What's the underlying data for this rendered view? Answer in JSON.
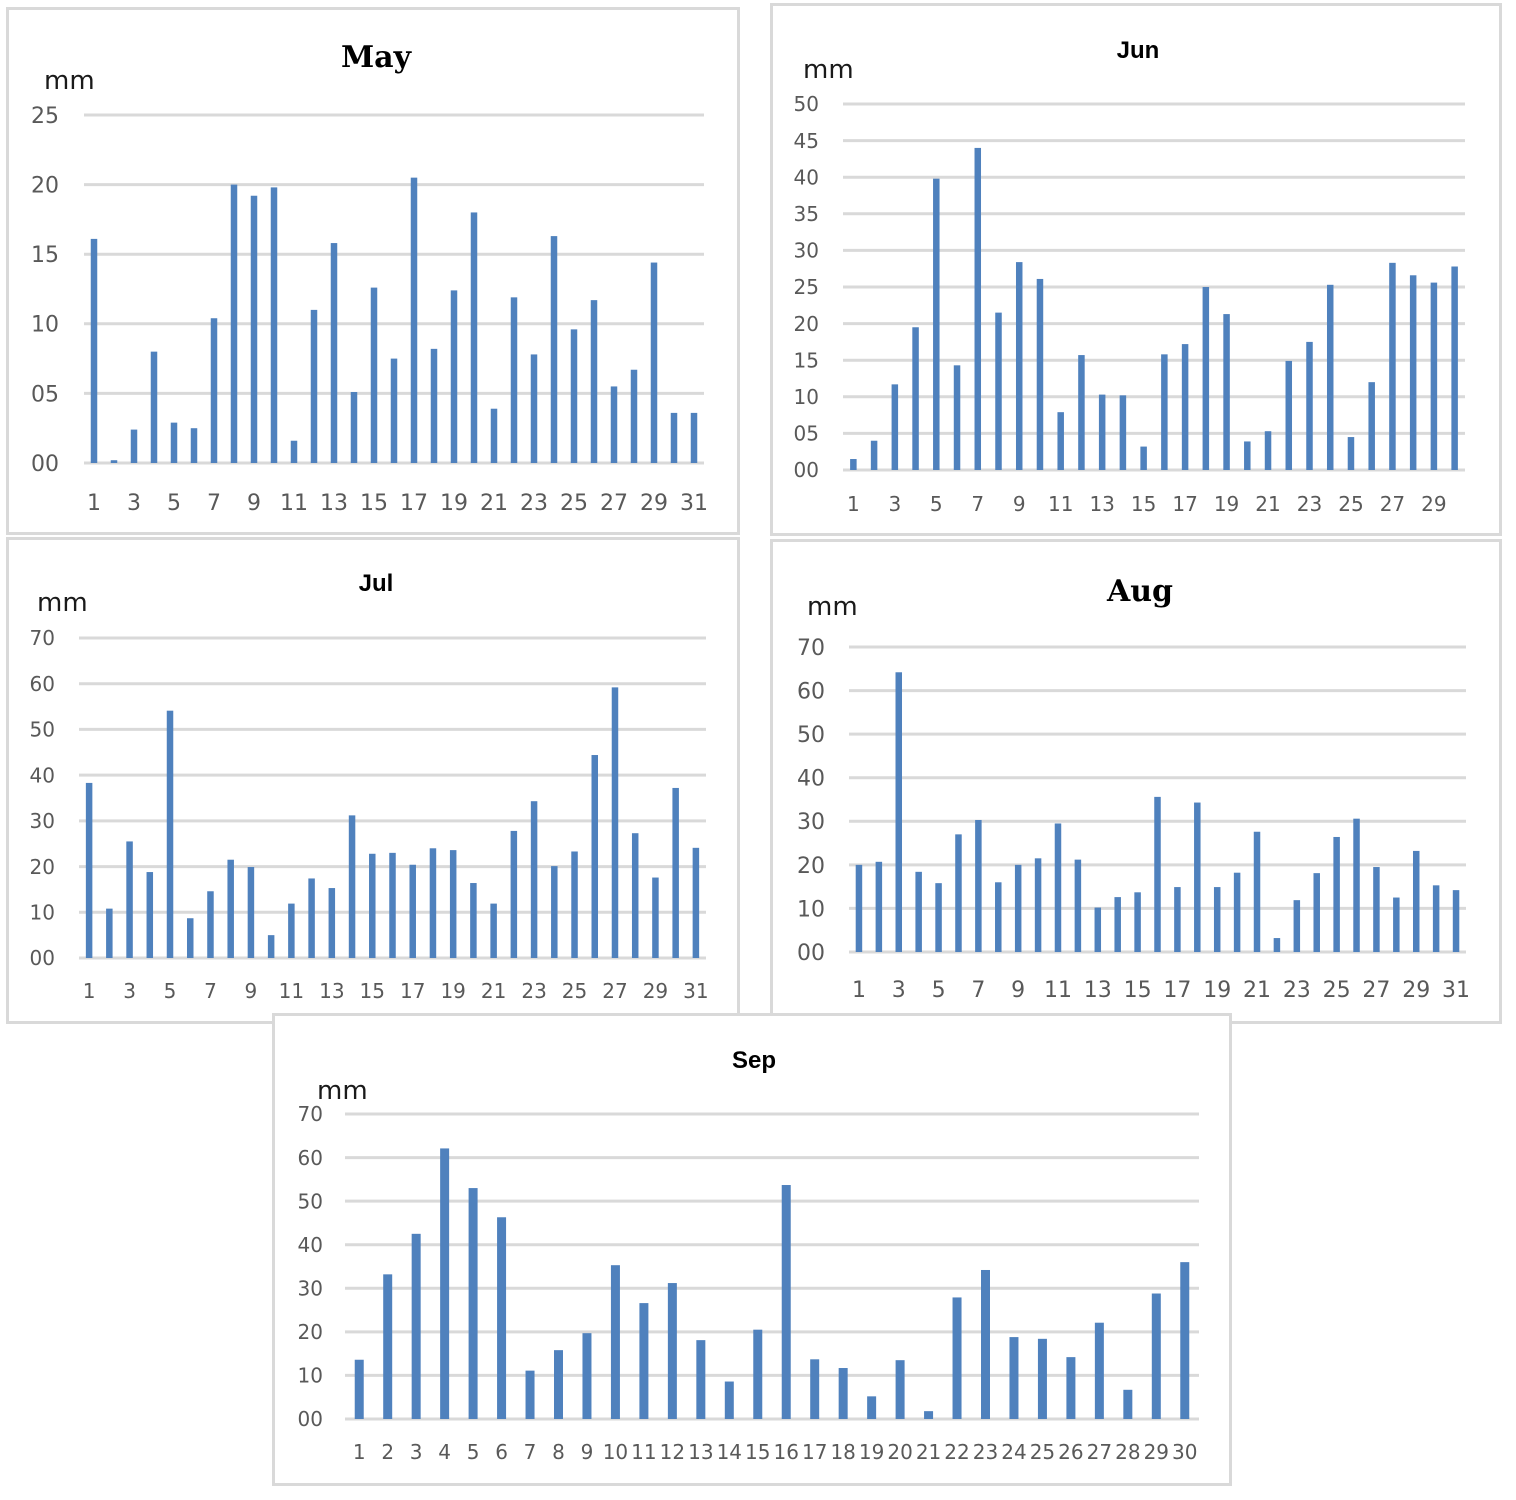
{
  "chart_data": [
    {
      "type": "bar",
      "title": "May",
      "ylabel": "mm",
      "ylim": [
        0,
        25
      ],
      "y_ticks": [
        "00",
        "05",
        "10",
        "15",
        "20",
        "25"
      ],
      "x_tick_labels": [
        "1",
        "3",
        "5",
        "7",
        "9",
        "11",
        "13",
        "15",
        "17",
        "19",
        "21",
        "23",
        "25",
        "27",
        "29",
        "31"
      ],
      "categories": [
        "1",
        "2",
        "3",
        "4",
        "5",
        "6",
        "7",
        "8",
        "9",
        "10",
        "11",
        "12",
        "13",
        "14",
        "15",
        "16",
        "17",
        "18",
        "19",
        "20",
        "21",
        "22",
        "23",
        "24",
        "25",
        "26",
        "27",
        "28",
        "29",
        "30",
        "31"
      ],
      "values": [
        16.1,
        0.2,
        2.4,
        8.0,
        2.9,
        2.5,
        10.4,
        20.0,
        19.2,
        19.8,
        1.6,
        11.0,
        15.8,
        5.1,
        12.6,
        7.5,
        20.5,
        8.2,
        12.4,
        18.0,
        3.9,
        11.9,
        7.8,
        16.3,
        9.6,
        11.7,
        5.5,
        6.7,
        14.4,
        3.6,
        3.6
      ],
      "grid": true,
      "color": "#4f81bd"
    },
    {
      "type": "bar",
      "title": "Jun",
      "ylabel": "mm",
      "ylim": [
        0,
        50
      ],
      "y_ticks": [
        "00",
        "05",
        "10",
        "15",
        "20",
        "25",
        "30",
        "35",
        "40",
        "45",
        "50"
      ],
      "x_tick_labels": [
        "1",
        "3",
        "5",
        "7",
        "9",
        "11",
        "13",
        "15",
        "17",
        "19",
        "21",
        "23",
        "25",
        "27",
        "29"
      ],
      "categories": [
        "1",
        "2",
        "3",
        "4",
        "5",
        "6",
        "7",
        "8",
        "9",
        "10",
        "11",
        "12",
        "13",
        "14",
        "15",
        "16",
        "17",
        "18",
        "19",
        "20",
        "21",
        "22",
        "23",
        "24",
        "25",
        "26",
        "27",
        "28",
        "29",
        "30"
      ],
      "values": [
        1.5,
        4.0,
        11.7,
        19.5,
        39.8,
        14.3,
        44.0,
        21.5,
        28.4,
        26.1,
        7.9,
        15.7,
        10.3,
        10.2,
        3.2,
        15.8,
        17.2,
        25.0,
        21.3,
        3.9,
        5.3,
        14.9,
        17.5,
        25.3,
        4.5,
        12.0,
        28.3,
        26.6,
        25.6,
        27.8
      ],
      "grid": true,
      "color": "#4f81bd"
    },
    {
      "type": "bar",
      "title": "Jul",
      "ylabel": "mm",
      "ylim": [
        0,
        70
      ],
      "y_ticks": [
        "00",
        "10",
        "20",
        "30",
        "40",
        "50",
        "60",
        "70"
      ],
      "x_tick_labels": [
        "1",
        "3",
        "5",
        "7",
        "9",
        "11",
        "13",
        "15",
        "17",
        "19",
        "21",
        "23",
        "25",
        "27",
        "29",
        "31"
      ],
      "categories": [
        "1",
        "2",
        "3",
        "4",
        "5",
        "6",
        "7",
        "8",
        "9",
        "10",
        "11",
        "12",
        "13",
        "14",
        "15",
        "16",
        "17",
        "18",
        "19",
        "20",
        "21",
        "22",
        "23",
        "24",
        "25",
        "26",
        "27",
        "28",
        "29",
        "30",
        "31"
      ],
      "values": [
        38.3,
        10.8,
        25.5,
        18.8,
        54.1,
        8.7,
        14.6,
        21.5,
        19.9,
        5.0,
        11.9,
        17.4,
        15.3,
        31.2,
        22.8,
        23.0,
        20.4,
        24.0,
        23.6,
        16.4,
        11.9,
        27.8,
        34.3,
        20.1,
        23.3,
        44.4,
        59.2,
        27.3,
        17.6,
        37.2,
        24.1
      ],
      "grid": true,
      "color": "#4f81bd"
    },
    {
      "type": "bar",
      "title": "Aug",
      "ylabel": "mm",
      "ylim": [
        0,
        70
      ],
      "y_ticks": [
        "00",
        "10",
        "20",
        "30",
        "40",
        "50",
        "60",
        "70"
      ],
      "x_tick_labels": [
        "1",
        "3",
        "5",
        "7",
        "9",
        "11",
        "13",
        "15",
        "17",
        "19",
        "21",
        "23",
        "25",
        "27",
        "29",
        "31"
      ],
      "categories": [
        "1",
        "2",
        "3",
        "4",
        "5",
        "6",
        "7",
        "8",
        "9",
        "10",
        "11",
        "12",
        "13",
        "14",
        "15",
        "16",
        "17",
        "18",
        "19",
        "20",
        "21",
        "22",
        "23",
        "24",
        "25",
        "26",
        "27",
        "28",
        "29",
        "30",
        "31"
      ],
      "values": [
        20.0,
        20.7,
        64.2,
        18.4,
        15.8,
        27.0,
        30.3,
        16.0,
        20.0,
        21.5,
        29.5,
        21.2,
        10.2,
        12.6,
        13.7,
        35.6,
        14.9,
        34.3,
        14.9,
        18.2,
        27.6,
        3.2,
        11.9,
        18.1,
        26.4,
        30.6,
        19.5,
        12.5,
        23.2,
        15.3,
        14.2
      ],
      "grid": true,
      "color": "#4f81bd"
    },
    {
      "type": "bar",
      "title": "Sep",
      "ylabel": "mm",
      "ylim": [
        0,
        70
      ],
      "y_ticks": [
        "00",
        "10",
        "20",
        "30",
        "40",
        "50",
        "60",
        "70"
      ],
      "x_tick_labels": [
        "1",
        "2",
        "3",
        "4",
        "5",
        "6",
        "7",
        "8",
        "9",
        "10",
        "11",
        "12",
        "13",
        "14",
        "15",
        "16",
        "17",
        "18",
        "19",
        "20",
        "21",
        "22",
        "23",
        "24",
        "25",
        "26",
        "27",
        "28",
        "29",
        "30"
      ],
      "categories": [
        "1",
        "2",
        "3",
        "4",
        "5",
        "6",
        "7",
        "8",
        "9",
        "10",
        "11",
        "12",
        "13",
        "14",
        "15",
        "16",
        "17",
        "18",
        "19",
        "20",
        "21",
        "22",
        "23",
        "24",
        "25",
        "26",
        "27",
        "28",
        "29",
        "30"
      ],
      "values": [
        13.6,
        33.2,
        42.5,
        62.1,
        53.0,
        46.3,
        11.1,
        15.8,
        19.7,
        35.3,
        26.6,
        31.2,
        18.1,
        8.6,
        20.5,
        53.7,
        13.7,
        11.7,
        5.2,
        13.5,
        1.8,
        27.9,
        34.2,
        18.8,
        18.4,
        14.2,
        22.1,
        6.7,
        28.8,
        36.0
      ],
      "grid": true,
      "color": "#4f81bd"
    }
  ]
}
